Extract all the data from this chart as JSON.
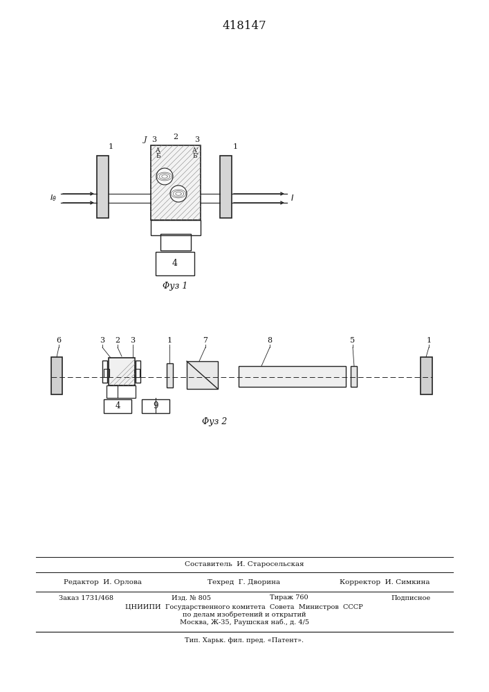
{
  "patent_number": "418147",
  "fig1_caption": "Φуз 1",
  "fig2_caption": "Φуз 2",
  "footer_sestavitel": "Составитель  И. Старосельская",
  "footer_redaktor": "Редактор  И. Орлова",
  "footer_tehred": "Техред  Г. Дворина",
  "footer_korrektor": "Корректор  И. Симкина",
  "footer_zakaz": "Заказ 1731/468",
  "footer_izd": "Изд. № 805",
  "footer_tirazh": "Тираж 760",
  "footer_podpisnoe": "Подписное",
  "footer_tsniip1": "ЦНИИПИ  Государственного комитета  Совета  Министров  СССР",
  "footer_tsniip2": "по делам изобретений и открытий",
  "footer_moscow": "Москва, Ж-35, Раушская наб., д. 4/5",
  "footer_tip": "Тип. Харьк. фил. пред. «Патент».",
  "bg_color": "#ffffff",
  "lc": "#222222",
  "tc": "#111111"
}
